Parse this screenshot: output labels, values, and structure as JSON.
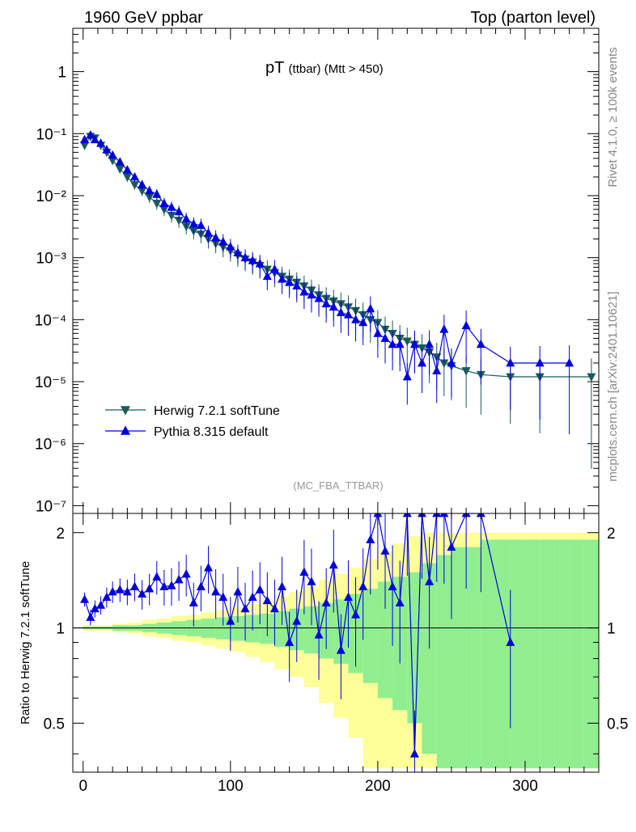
{
  "header": {
    "left": "1960 GeV ppbar",
    "right": "Top (parton level)"
  },
  "side_labels": {
    "rivet": "Rivet 4.1.0, ≥ 100k events",
    "mcplots": "mcplots.cern.ch [arXiv:2401.10621]"
  },
  "chart_data": [
    {
      "type": "line",
      "title": "pT (ttbar) (Mtt > 450)",
      "title_main": "pT",
      "title_sub": "(ttbar) (Mtt > 450)",
      "analysis": "(MC_FBA_TTBAR)",
      "yscale": "log",
      "xlim": [
        -7,
        350
      ],
      "ylim": [
        7.5e-08,
        5
      ],
      "ytick_labels": [
        "1",
        "10⁻¹",
        "10⁻²",
        "10⁻³",
        "10⁻⁴",
        "10⁻⁵",
        "10⁻⁶",
        "10⁻⁷"
      ],
      "legend_position": "lower-left",
      "series": [
        {
          "name": "Herwig 7.2.1 softTune",
          "color": "#1a5a5a",
          "marker": "triangle-down",
          "x": [
            1,
            5,
            8,
            12,
            16,
            20,
            25,
            30,
            35,
            40,
            45,
            50,
            55,
            60,
            65,
            70,
            75,
            80,
            85,
            90,
            95,
            100,
            105,
            110,
            115,
            120,
            125,
            130,
            135,
            140,
            145,
            150,
            155,
            160,
            165,
            170,
            175,
            180,
            185,
            190,
            195,
            200,
            205,
            210,
            215,
            220,
            225,
            230,
            235,
            240,
            245,
            250,
            260,
            270,
            290,
            310,
            345
          ],
          "y": [
            0.065,
            0.09,
            0.085,
            0.065,
            0.05,
            0.037,
            0.027,
            0.02,
            0.015,
            0.012,
            0.0095,
            0.0075,
            0.006,
            0.0048,
            0.004,
            0.0032,
            0.0027,
            0.0024,
            0.002,
            0.0017,
            0.0015,
            0.0013,
            0.0011,
            0.00095,
            0.00085,
            0.00075,
            0.00065,
            0.00057,
            0.0005,
            0.00045,
            0.0004,
            0.00035,
            0.0003,
            0.00025,
            0.00022,
            0.0002,
            0.00018,
            0.00016,
            0.00014,
            0.00012,
            0.0001,
            9e-05,
            7e-05,
            6e-05,
            5e-05,
            4.5e-05,
            4e-05,
            3.5e-05,
            3e-05,
            2.5e-05,
            2e-05,
            1.8e-05,
            1.5e-05,
            1.3e-05,
            1.2e-05,
            1.2e-05,
            1.2e-05
          ]
        },
        {
          "name": "Pythia 8.315 default",
          "color": "#0000dd",
          "marker": "triangle-up",
          "x": [
            1,
            5,
            8,
            12,
            16,
            20,
            25,
            30,
            35,
            40,
            45,
            50,
            55,
            60,
            65,
            70,
            75,
            80,
            85,
            90,
            95,
            100,
            105,
            110,
            115,
            120,
            125,
            130,
            135,
            140,
            145,
            150,
            155,
            160,
            165,
            170,
            175,
            180,
            185,
            190,
            195,
            200,
            205,
            210,
            215,
            220,
            225,
            230,
            235,
            240,
            245,
            250,
            260,
            270,
            290,
            310,
            330
          ],
          "y": [
            0.08,
            0.095,
            0.08,
            0.07,
            0.055,
            0.045,
            0.035,
            0.026,
            0.02,
            0.015,
            0.012,
            0.0105,
            0.0075,
            0.0065,
            0.0055,
            0.0042,
            0.0035,
            0.0033,
            0.0025,
            0.0021,
            0.0018,
            0.0015,
            0.0012,
            0.001,
            0.0009,
            0.0008,
            0.0005,
            0.00065,
            0.00045,
            0.0004,
            0.00035,
            0.00028,
            0.00025,
            0.00022,
            0.00018,
            0.00016,
            0.00013,
            0.00012,
            0.0001,
            9e-05,
            0.00015,
            6e-05,
            5e-05,
            4e-05,
            4e-05,
            1.2e-05,
            4e-05,
            2e-05,
            4e-05,
            1.5e-05,
            7e-05,
            2e-05,
            8e-05,
            4e-05,
            2e-05,
            2e-05,
            2e-05
          ]
        }
      ]
    },
    {
      "type": "line",
      "ylabel": "Ratio to Herwig 7.2.1 softTune",
      "xlim": [
        -7,
        350
      ],
      "ylim": [
        0.35,
        2.3
      ],
      "xticks": [
        0,
        100,
        200,
        300
      ],
      "xtick_labels": [
        "0",
        "100",
        "200",
        "300"
      ],
      "ytick_labels": [
        "2",
        "1",
        "0.5"
      ],
      "reference_line": 1,
      "band_inner_color": "#90ee90",
      "band_outer_color": "#ffff99",
      "band_x": [
        0,
        10,
        20,
        30,
        40,
        50,
        60,
        70,
        80,
        90,
        100,
        110,
        120,
        130,
        140,
        150,
        160,
        170,
        180,
        190,
        200,
        210,
        220,
        230,
        240,
        250,
        260,
        270,
        280,
        290,
        300,
        310,
        320,
        330,
        340,
        350
      ],
      "band_inner": [
        0.01,
        0.01,
        0.02,
        0.02,
        0.03,
        0.04,
        0.05,
        0.06,
        0.07,
        0.08,
        0.09,
        0.1,
        0.11,
        0.13,
        0.15,
        0.17,
        0.2,
        0.23,
        0.28,
        0.33,
        0.4,
        0.45,
        0.5,
        0.6,
        0.7,
        0.8,
        0.8,
        0.9,
        0.9,
        0.9,
        0.9,
        0.9,
        0.9,
        0.9,
        0.9,
        0.9
      ],
      "band_outer": [
        0.02,
        0.02,
        0.03,
        0.04,
        0.06,
        0.07,
        0.09,
        0.1,
        0.12,
        0.14,
        0.16,
        0.19,
        0.22,
        0.26,
        0.3,
        0.35,
        0.42,
        0.48,
        0.55,
        0.65,
        0.75,
        0.85,
        0.95,
        1,
        1,
        1,
        1,
        1,
        1,
        1,
        1,
        1,
        1,
        1,
        1,
        1
      ],
      "series": [
        {
          "name": "Pythia 8.315 default",
          "color": "#0000dd",
          "x": [
            1,
            5,
            8,
            12,
            16,
            20,
            25,
            30,
            35,
            40,
            45,
            50,
            55,
            60,
            65,
            70,
            75,
            80,
            85,
            90,
            95,
            100,
            105,
            110,
            115,
            120,
            125,
            130,
            135,
            140,
            145,
            150,
            155,
            160,
            165,
            170,
            175,
            180,
            185,
            190,
            195,
            200,
            205,
            210,
            215,
            220,
            225,
            230,
            235,
            240,
            245,
            250,
            260,
            270,
            290
          ],
          "y": [
            1.23,
            1.08,
            1.15,
            1.18,
            1.25,
            1.3,
            1.32,
            1.3,
            1.35,
            1.28,
            1.33,
            1.45,
            1.35,
            1.36,
            1.42,
            1.48,
            1.2,
            1.35,
            1.55,
            1.3,
            1.25,
            1.05,
            1.3,
            1.15,
            1.25,
            1.32,
            1.22,
            1.15,
            1.35,
            0.9,
            1.05,
            1.5,
            1.4,
            0.95,
            1.2,
            1.58,
            0.85,
            1.25,
            1.1,
            1.35,
            1.9,
            2.3,
            1.75,
            1.35,
            1.2,
            2.3,
            0.4,
            2.3,
            1.4,
            2.3,
            2.3,
            1.8,
            2.3,
            2.3,
            0.9
          ]
        }
      ]
    }
  ]
}
